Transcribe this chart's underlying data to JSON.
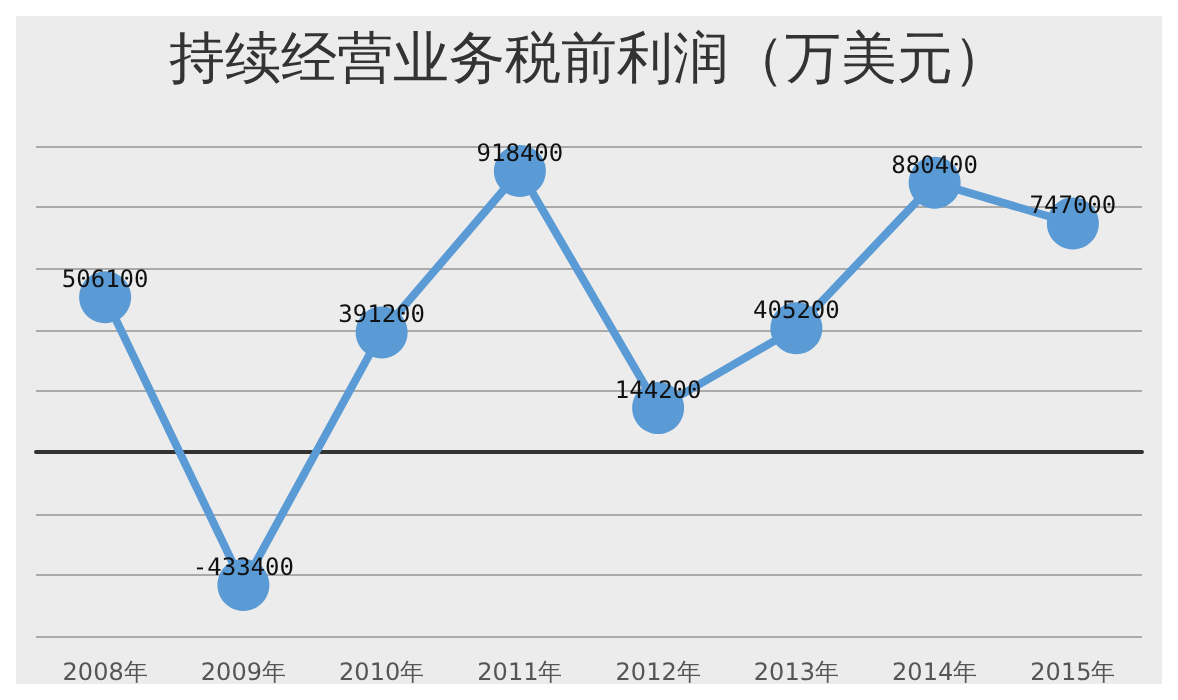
{
  "chart_data": {
    "type": "line",
    "title": "持续经营业务税前利润（万美元）",
    "categories": [
      "2008年",
      "2009年",
      "2010年",
      "2011年",
      "2012年",
      "2013年",
      "2014年",
      "2015年"
    ],
    "series": [
      {
        "color": "#5b9bd5",
        "values": [
          506100,
          -433400,
          391200,
          918400,
          144200,
          405200,
          880400,
          747000
        ]
      }
    ],
    "ylim": [
      -600000,
      1000000
    ],
    "yticks": [
      {
        "value": -600000,
        "label": null
      },
      {
        "value": -400000,
        "label": null
      },
      {
        "value": -200000,
        "label": null
      },
      {
        "value": 0,
        "label": null
      },
      {
        "value": 200000,
        "label": null
      },
      {
        "value": 400000,
        "label": null
      },
      {
        "value": 600000,
        "label": null
      },
      {
        "value": 800000,
        "label": null
      },
      {
        "value": 1000000,
        "label": null
      }
    ],
    "grid": "y",
    "data_labels": true,
    "marker": "circle",
    "tick_labels": "x"
  }
}
